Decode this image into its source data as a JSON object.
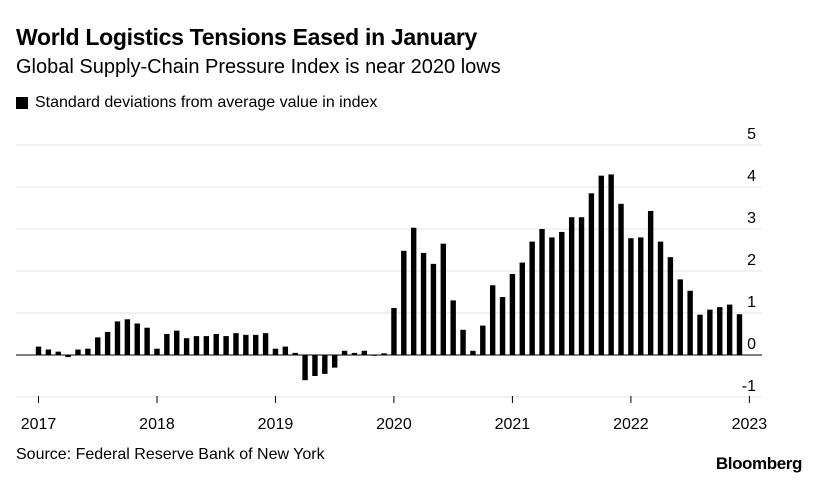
{
  "chart_data": {
    "type": "bar",
    "title": "World Logistics Tensions Eased in January",
    "subtitle": "Global Supply-Chain Pressure Index is near 2020 lows",
    "legend": [
      "Standard deviations from average value in index"
    ],
    "legend_placement": "top-left",
    "source": "Source: Federal Reserve Bank of New York",
    "brand": "Bloomberg",
    "xlabel": "",
    "ylabel": "",
    "ylim": [
      -1,
      5
    ],
    "yticks": [
      5,
      4,
      3,
      2,
      1,
      0,
      -1
    ],
    "y_axis_side": "right",
    "grid": true,
    "x_ticks": [
      "2017",
      "2018",
      "2019",
      "2020",
      "2021",
      "2022",
      "2023"
    ],
    "frequency": "monthly",
    "start": "2017-01",
    "series": [
      {
        "name": "Standard deviations from average value in index",
        "values": [
          0.2,
          0.13,
          0.08,
          -0.05,
          0.13,
          0.15,
          0.42,
          0.55,
          0.8,
          0.85,
          0.75,
          0.65,
          0.15,
          0.5,
          0.58,
          0.4,
          0.45,
          0.45,
          0.5,
          0.45,
          0.52,
          0.48,
          0.48,
          0.52,
          0.15,
          0.2,
          0.05,
          -0.6,
          -0.5,
          -0.45,
          -0.3,
          0.1,
          0.05,
          0.1,
          0.0,
          0.04,
          1.12,
          2.48,
          3.03,
          2.43,
          2.17,
          2.65,
          1.3,
          0.6,
          0.1,
          0.7,
          1.66,
          1.38,
          1.93,
          2.2,
          2.7,
          3.0,
          2.8,
          2.93,
          3.28,
          3.28,
          3.85,
          4.27,
          4.3,
          3.6,
          2.78,
          2.8,
          3.43,
          2.7,
          2.33,
          1.8,
          1.53,
          0.96,
          1.08,
          1.14,
          1.2,
          0.97
        ]
      }
    ]
  }
}
